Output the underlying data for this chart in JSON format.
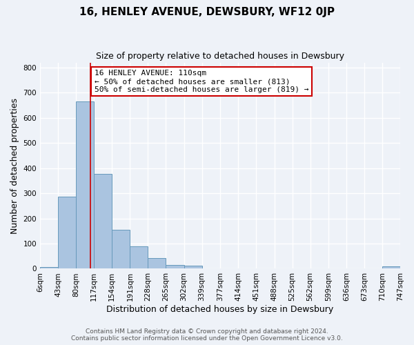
{
  "title": "16, HENLEY AVENUE, DEWSBURY, WF12 0JP",
  "subtitle": "Size of property relative to detached houses in Dewsbury",
  "xlabel": "Distribution of detached houses by size in Dewsbury",
  "ylabel": "Number of detached properties",
  "bin_edges": [
    6,
    43,
    80,
    117,
    154,
    191,
    228,
    265,
    302,
    339,
    377,
    414,
    451,
    488,
    525,
    562,
    599,
    636,
    673,
    710,
    747
  ],
  "bin_labels": [
    "6sqm",
    "43sqm",
    "80sqm",
    "117sqm",
    "154sqm",
    "191sqm",
    "228sqm",
    "265sqm",
    "302sqm",
    "339sqm",
    "377sqm",
    "414sqm",
    "451sqm",
    "488sqm",
    "525sqm",
    "562sqm",
    "599sqm",
    "636sqm",
    "673sqm",
    "710sqm",
    "747sqm"
  ],
  "bar_heights": [
    8,
    287,
    665,
    378,
    155,
    88,
    42,
    14,
    12,
    0,
    0,
    0,
    0,
    0,
    0,
    0,
    0,
    0,
    0,
    10
  ],
  "bar_color": "#aac4e0",
  "bar_edge_color": "#6699bb",
  "property_line_x": 110,
  "property_line_color": "#cc0000",
  "annotation_line1": "16 HENLEY AVENUE: 110sqm",
  "annotation_line2": "← 50% of detached houses are smaller (813)",
  "annotation_line3": "50% of semi-detached houses are larger (819) →",
  "annotation_box_color": "#ffffff",
  "annotation_box_edge": "#cc0000",
  "ylim": [
    0,
    820
  ],
  "yticks": [
    0,
    100,
    200,
    300,
    400,
    500,
    600,
    700,
    800
  ],
  "footer_line1": "Contains HM Land Registry data © Crown copyright and database right 2024.",
  "footer_line2": "Contains public sector information licensed under the Open Government Licence v3.0.",
  "background_color": "#eef2f8",
  "grid_color": "#ffffff",
  "title_fontsize": 11,
  "subtitle_fontsize": 9,
  "axis_label_fontsize": 9,
  "tick_fontsize": 7.5,
  "annotation_fontsize": 8,
  "footer_fontsize": 6.5
}
